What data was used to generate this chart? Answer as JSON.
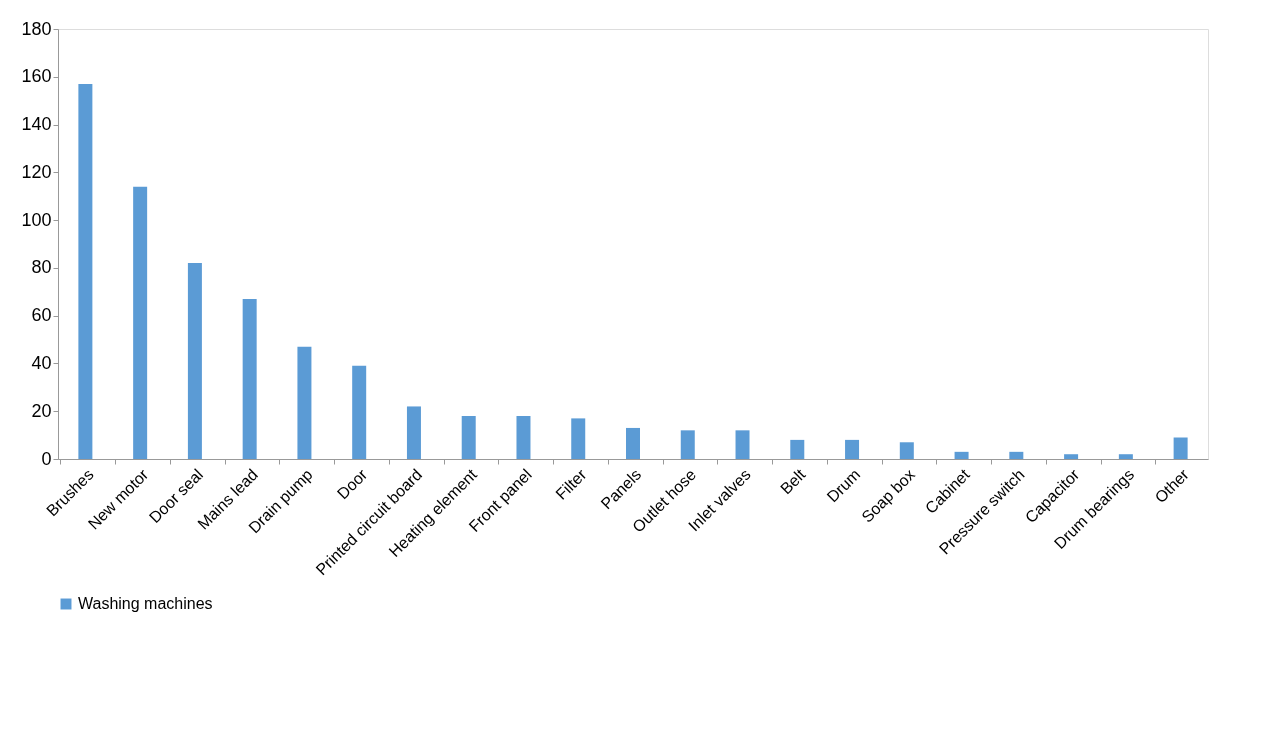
{
  "chart_data": {
    "type": "bar",
    "categories": [
      "Brushes",
      "New motor",
      "Door seal",
      "Mains lead",
      "Drain pump",
      "Door",
      "Printed circuit board",
      "Heating element",
      "Front panel",
      "Filter",
      "Panels",
      "Outlet hose",
      "Inlet valves",
      "Belt",
      "Drum",
      "Soap box",
      "Cabinet",
      "Pressure switch",
      "Capacitor",
      "Drum bearings",
      "Other"
    ],
    "series": [
      {
        "name": "Washing machines",
        "color": "#5b9bd5",
        "values": [
          157,
          114,
          82,
          67,
          47,
          39,
          22,
          18,
          18,
          17,
          13,
          12,
          12,
          8,
          8,
          7,
          3,
          3,
          2,
          2,
          9
        ]
      }
    ],
    "ylim": [
      0,
      180
    ],
    "yticks": [
      0,
      20,
      40,
      60,
      80,
      100,
      120,
      140,
      160,
      180
    ],
    "grid": false,
    "legend": "bottom"
  }
}
